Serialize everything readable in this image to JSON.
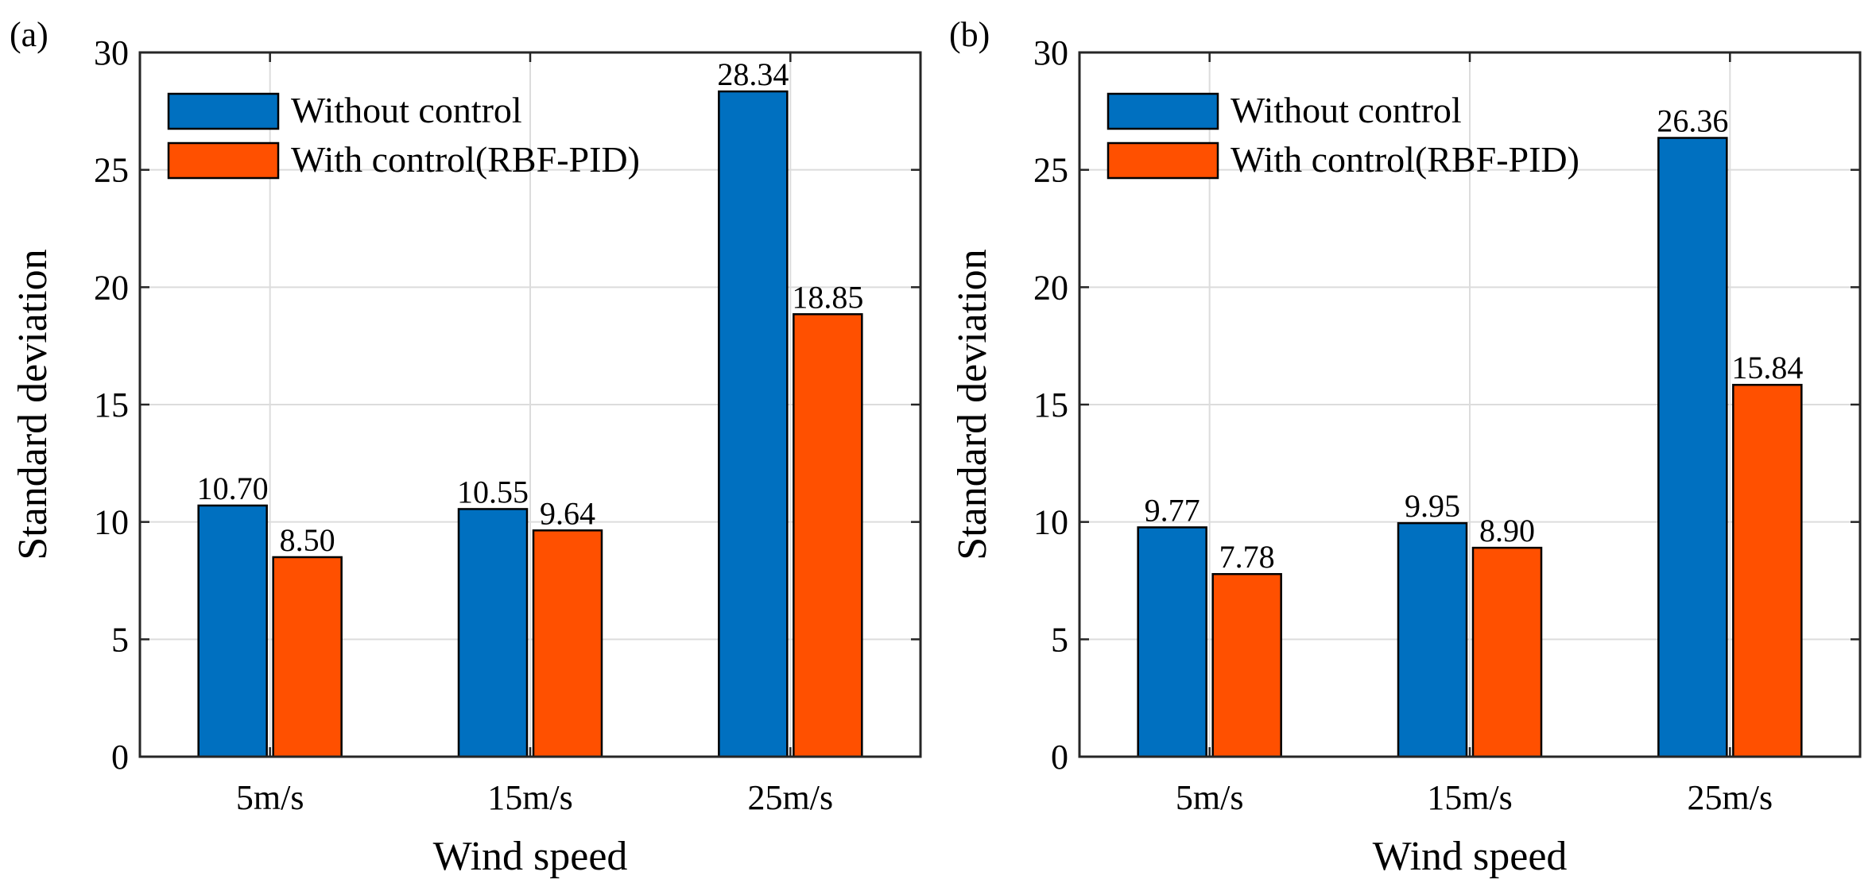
{
  "chart_data": [
    {
      "type": "bar",
      "panel_label": "(a)",
      "categories": [
        "5m/s",
        "15m/s",
        "25m/s"
      ],
      "series": [
        {
          "name": "Without control",
          "color": "#0070c0",
          "values": [
            10.7,
            10.55,
            28.34
          ],
          "labels": [
            "10.70",
            "10.55",
            "28.34"
          ]
        },
        {
          "name": "With control(RBF-PID)",
          "color": "#ff5000",
          "values": [
            8.5,
            9.64,
            18.85
          ],
          "labels": [
            "8.50",
            "9.64",
            "18.85"
          ]
        }
      ],
      "xlabel": "Wind speed",
      "ylabel": "Standard deviation",
      "ylim": [
        0,
        30
      ],
      "yticks": [
        "0",
        "5",
        "10",
        "15",
        "20",
        "25",
        "30"
      ],
      "grid": true,
      "legend_position": "top-left"
    },
    {
      "type": "bar",
      "panel_label": "(b)",
      "categories": [
        "5m/s",
        "15m/s",
        "25m/s"
      ],
      "series": [
        {
          "name": "Without control",
          "color": "#0070c0",
          "values": [
            9.77,
            9.95,
            26.36
          ],
          "labels": [
            "9.77",
            "9.95",
            "26.36"
          ]
        },
        {
          "name": "With control(RBF-PID)",
          "color": "#ff5000",
          "values": [
            7.78,
            8.9,
            15.84
          ],
          "labels": [
            "7.78",
            "8.90",
            "15.84"
          ]
        }
      ],
      "xlabel": "Wind speed",
      "ylabel": "Standard deviation",
      "ylim": [
        0,
        30
      ],
      "yticks": [
        "0",
        "5",
        "10",
        "15",
        "20",
        "25",
        "30"
      ],
      "grid": true,
      "legend_position": "top-left"
    }
  ]
}
